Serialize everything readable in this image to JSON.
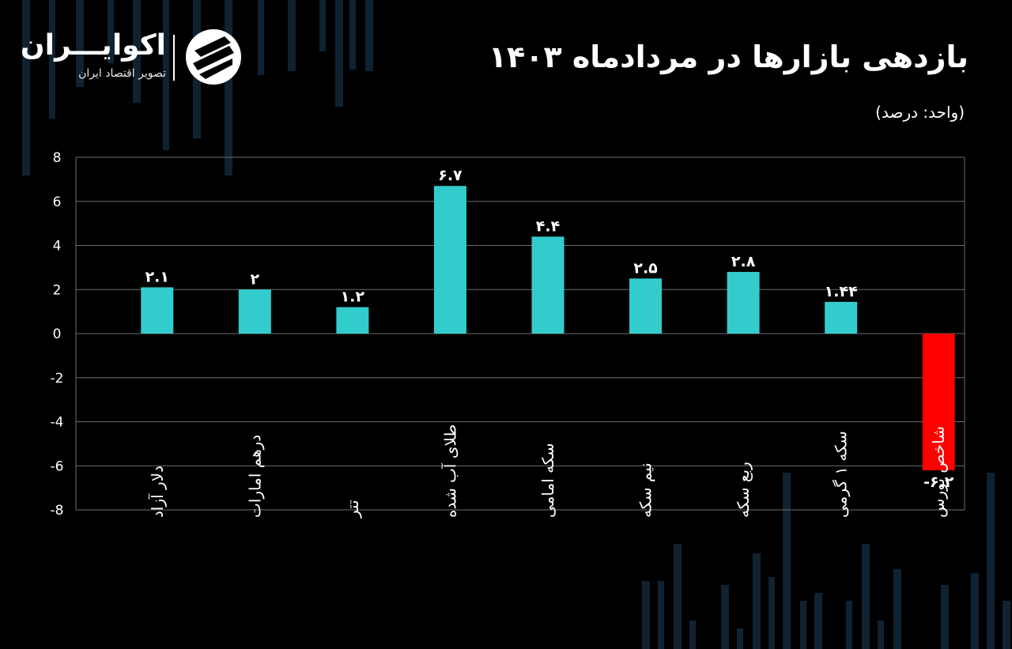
{
  "brand": {
    "name": "اکوایـــران",
    "tagline": "تصویر اقتصاد ایران"
  },
  "colors": {
    "background": "#000000",
    "positive": "#33cccc",
    "negative": "#ff0000",
    "grid": "#6e6e6e",
    "deco": "#0f2231"
  },
  "chart_data": {
    "type": "bar",
    "title": "بازدهی بازارها در مردادماه ۱۴۰۳",
    "unit_label": "(واحد: درصد)",
    "ylim": [
      -8,
      8
    ],
    "yticks": [
      8,
      6,
      4,
      2,
      0,
      -2,
      -4,
      -6,
      -8
    ],
    "ytick_labels": [
      "8",
      "6",
      "4",
      "2",
      "0",
      "-2",
      "-4",
      "-6",
      "-8"
    ],
    "categories": [
      "دلار آزاد",
      "درهم امارات",
      "تتر",
      "طلای آب شده",
      "سکه امامی",
      "نیم سکه",
      "ربع سکه",
      "سکه ۱ گرمی",
      "شاخص بورس"
    ],
    "values": [
      2.1,
      2,
      1.2,
      6.7,
      4.4,
      2.5,
      2.8,
      1.44,
      -6.2
    ],
    "value_labels": [
      "۲.۱",
      "۲",
      "۱.۲",
      "۶.۷",
      "۴.۴",
      "۲.۵",
      "۲.۸",
      "۱.۴۴",
      "-۶.۲"
    ],
    "grid": true,
    "legend": "none"
  }
}
